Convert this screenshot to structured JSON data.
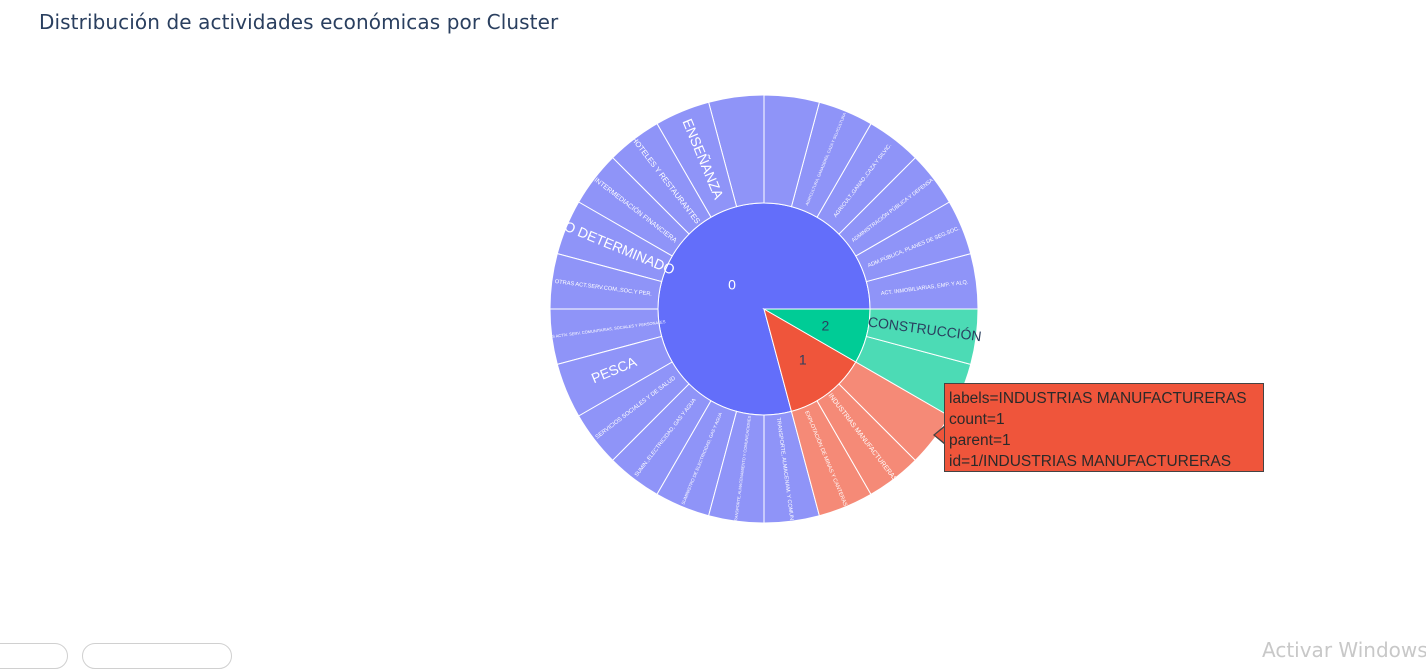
{
  "chart_data": {
    "type": "sunburst",
    "title": "Distribución de actividades económicas por Cluster",
    "colors": {
      "cluster_0": "#636efa",
      "cluster_1": "#ef553b",
      "cluster_2": "#00cc96",
      "cluster_0_leaf": "#8f94f8",
      "cluster_1_leaf": "#f58a77",
      "cluster_2_leaf": "#4cdbb5"
    },
    "clusters": [
      {
        "label": "0",
        "color": "#636efa",
        "leaf_color": "#8f94f8",
        "children": [
          {
            "label": "ACT. INMOBILIARIAS, EMP. Y ALQ.",
            "count": 1
          },
          {
            "label": "ADM.PÚBLICA, PLANES DE SEG.SOC.",
            "count": 1
          },
          {
            "label": "ADMINISTRACIÓN PÚBLICA Y DEFENSA",
            "count": 1
          },
          {
            "label": "AGRICULT.,GANAD.,CAZA Y SILVIC.",
            "count": 1
          },
          {
            "label": "AGRICULTURA, GANADERÍA, CAZA Y SILVICULTURA",
            "count": 1
          },
          {
            "label": "",
            "count": 1
          },
          {
            "label": "",
            "count": 1
          },
          {
            "label": "ENSEÑANZA",
            "count": 1
          },
          {
            "label": "HOTELES Y RESTAURANTES",
            "count": 1
          },
          {
            "label": "INTERMEDIACIÓN FINANCIERA",
            "count": 1
          },
          {
            "label": "NO DETERMINADO",
            "count": 1
          },
          {
            "label": "OTRAS ACT.SERV.COM.,SOC.Y PER.",
            "count": 1
          },
          {
            "label": "OTRAS ACTIV. SERV. COMUNITARIAS, SOCIALES Y PERSONALES",
            "count": 1
          },
          {
            "label": "PESCA",
            "count": 1
          },
          {
            "label": "SERVICIOS SOCIALES Y DE SALUD",
            "count": 1
          },
          {
            "label": "SUMIN.,ELECTRICIDAD, GAS Y AGUA",
            "count": 1
          },
          {
            "label": "SUMINISTRO DE ELECTRICIDAD, GAS Y AGUA",
            "count": 1
          },
          {
            "label": "TRANSPORTE, ALMACENAMIENTO Y COMUNICACIONES",
            "count": 1
          },
          {
            "label": "TRANSPORTE, ALMACENAM. Y COMUN.",
            "count": 1
          }
        ]
      },
      {
        "label": "1",
        "color": "#ef553b",
        "leaf_color": "#f58a77",
        "children": [
          {
            "label": "EXPLOTACIÓN DE MINAS Y CANTERAS",
            "count": 1
          },
          {
            "label": "INDUSTRIAS MANUFACTURERAS",
            "count": 1
          },
          {
            "label": "",
            "count": 1
          }
        ]
      },
      {
        "label": "2",
        "color": "#00cc96",
        "leaf_color": "#4cdbb5",
        "children": [
          {
            "label": "",
            "count": 1
          },
          {
            "label": "CONSTRUCCIÓN",
            "count": 1
          }
        ]
      }
    ]
  },
  "tooltip": {
    "line1": "labels=INDUSTRIAS MANUFACTURERAS",
    "line2": "count=1",
    "line3": "parent=1",
    "line4": "id=1/INDUSTRIAS MANUFACTURERAS"
  },
  "watermark": "Activar Windows"
}
